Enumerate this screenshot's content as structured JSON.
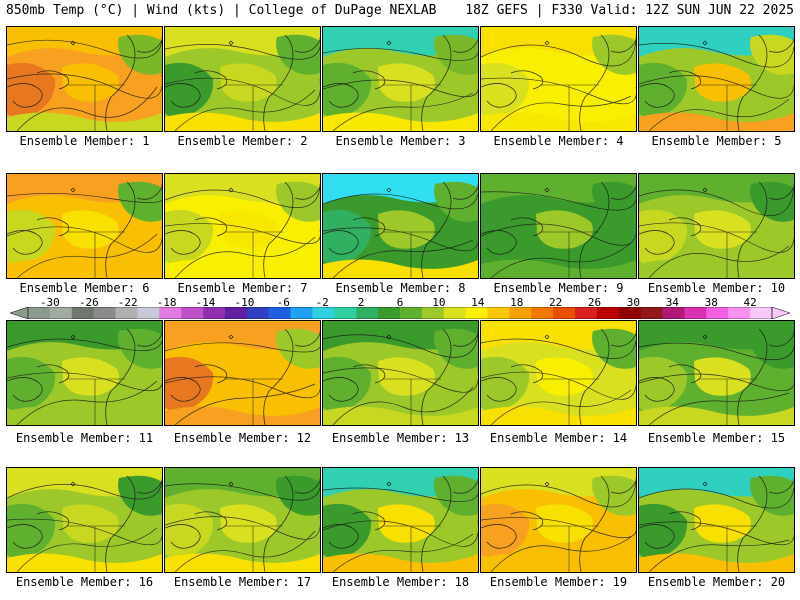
{
  "header": {
    "left": "850mb Temp (°C) | Wind (kts) | College of DuPage NEXLAB",
    "right": "18Z GEFS | F330 Valid: 12Z SUN JUN 22 2025"
  },
  "colorbar": {
    "labels": [
      "-30",
      "-26",
      "-22",
      "-18",
      "-14",
      "-10",
      "-6",
      "-2",
      "2",
      "6",
      "10",
      "14",
      "18",
      "22",
      "26",
      "30",
      "34",
      "38",
      "42"
    ],
    "colors": [
      "#8a9a8c",
      "#a0aca2",
      "#6f776f",
      "#8b8b8b",
      "#b0b0b0",
      "#c8c8d8",
      "#e07ae0",
      "#c050c8",
      "#9030b0",
      "#6020a0",
      "#3040c0",
      "#2060e0",
      "#20a0f0",
      "#30d0e0",
      "#30d0a0",
      "#30b060",
      "#3a9a2c",
      "#60b030",
      "#9cc82a",
      "#d8e020",
      "#f8f000",
      "#f8c800",
      "#f8a000",
      "#f07800",
      "#e85000",
      "#d82020",
      "#b80000",
      "#900000",
      "#901818",
      "#b01878",
      "#d830b0",
      "#f060e0",
      "#f890f0",
      "#f8c8f8"
    ]
  },
  "members": [
    {
      "label": "Ensemble Member: 1",
      "colors": [
        "#f8a020",
        "#f8c000",
        "#e87820",
        "#f8c000",
        "#c8d820",
        "#7ab82a"
      ]
    },
    {
      "label": "Ensemble Member: 2",
      "colors": [
        "#9cc82a",
        "#d8e020",
        "#3a9a2c",
        "#c8d820",
        "#f8e000",
        "#60b030"
      ]
    },
    {
      "label": "Ensemble Member: 3",
      "colors": [
        "#9cc82a",
        "#30d0b0",
        "#60b030",
        "#d8e020",
        "#f8e800",
        "#7ab82a"
      ]
    },
    {
      "label": "Ensemble Member: 4",
      "colors": [
        "#f8f000",
        "#f8e000",
        "#d8e020",
        "#f8f000",
        "#f8e800",
        "#9cc82a"
      ]
    },
    {
      "label": "Ensemble Member: 5",
      "colors": [
        "#9cc82a",
        "#30d0c0",
        "#60b030",
        "#f8c000",
        "#f8a020",
        "#c8d820"
      ]
    },
    {
      "label": "Ensemble Member: 6",
      "colors": [
        "#f8c000",
        "#f8a020",
        "#c8d820",
        "#f8e000",
        "#f8c000",
        "#60b030"
      ]
    },
    {
      "label": "Ensemble Member: 7",
      "colors": [
        "#f8f000",
        "#d8e020",
        "#c8d820",
        "#f8e800",
        "#f8f000",
        "#9cc82a"
      ]
    },
    {
      "label": "Ensemble Member: 8",
      "colors": [
        "#3a9a2c",
        "#30e0f0",
        "#30b060",
        "#9cc82a",
        "#f8e000",
        "#60b030"
      ]
    },
    {
      "label": "Ensemble Member: 9",
      "colors": [
        "#3a9a2c",
        "#60b030",
        "#3a9a2c",
        "#9cc82a",
        "#60b030",
        "#3a9a2c"
      ]
    },
    {
      "label": "Ensemble Member: 10",
      "colors": [
        "#9cc82a",
        "#60b030",
        "#c8d820",
        "#d8e020",
        "#9cc82a",
        "#3a9a2c"
      ]
    },
    {
      "label": "Ensemble Member: 11",
      "colors": [
        "#9cc82a",
        "#3a9a2c",
        "#60b030",
        "#d8e020",
        "#9cc82a",
        "#60b030"
      ]
    },
    {
      "label": "Ensemble Member: 12",
      "colors": [
        "#f8c000",
        "#f8a020",
        "#e87820",
        "#f8c000",
        "#f8a020",
        "#9cc82a"
      ]
    },
    {
      "label": "Ensemble Member: 13",
      "colors": [
        "#9cc82a",
        "#3a9a2c",
        "#60b030",
        "#d8e020",
        "#c8d820",
        "#60b030"
      ]
    },
    {
      "label": "Ensemble Member: 14",
      "colors": [
        "#d8e020",
        "#f8e000",
        "#9cc82a",
        "#f8f000",
        "#f8e000",
        "#60b030"
      ]
    },
    {
      "label": "Ensemble Member: 15",
      "colors": [
        "#60b030",
        "#3a9a2c",
        "#9cc82a",
        "#d8e020",
        "#c8d820",
        "#3a9a2c"
      ]
    },
    {
      "label": "Ensemble Member: 16",
      "colors": [
        "#9cc82a",
        "#d8e020",
        "#60b030",
        "#c8d820",
        "#f8e000",
        "#3a9a2c"
      ]
    },
    {
      "label": "Ensemble Member: 17",
      "colors": [
        "#9cc82a",
        "#60b030",
        "#c8d820",
        "#d8e020",
        "#f8e000",
        "#3a9a2c"
      ]
    },
    {
      "label": "Ensemble Member: 18",
      "colors": [
        "#9cc82a",
        "#30d0b0",
        "#3a9a2c",
        "#f8e000",
        "#f8c000",
        "#60b030"
      ]
    },
    {
      "label": "Ensemble Member: 19",
      "colors": [
        "#f8c000",
        "#d8e020",
        "#f8a020",
        "#f8e000",
        "#f8c000",
        "#9cc82a"
      ]
    },
    {
      "label": "Ensemble Member: 20",
      "colors": [
        "#9cc82a",
        "#30d0c0",
        "#3a9a2c",
        "#f8e000",
        "#f8c000",
        "#60b030"
      ]
    }
  ]
}
